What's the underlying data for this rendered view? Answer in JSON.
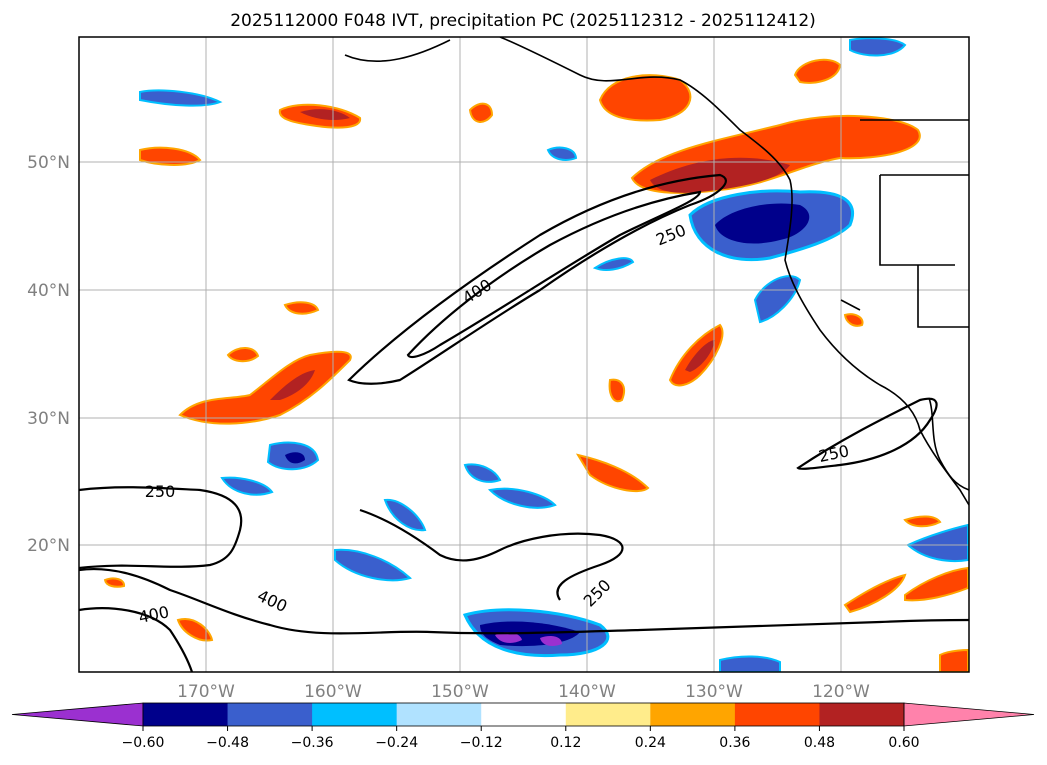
{
  "title": "2025112000 F048 IVT, precipitation PC (2025112312 - 2025112412)",
  "map": {
    "lon_labels": [
      "170°W",
      "160°W",
      "150°W",
      "140°W",
      "130°W",
      "120°W"
    ],
    "lat_labels": [
      "50°N",
      "40°N",
      "30°N",
      "20°N"
    ],
    "grid": true
  },
  "ivt_contours": {
    "labels": [
      "400",
      "250",
      "250",
      "250",
      "400",
      "400",
      "250"
    ]
  },
  "colorbar": {
    "ticks": [
      "−0.60",
      "−0.48",
      "−0.36",
      "−0.24",
      "−0.12",
      "0.12",
      "0.24",
      "0.36",
      "0.48",
      "0.60"
    ],
    "colors": [
      "#9b30d0",
      "#00008b",
      "#3a5fcd",
      "#00bfff",
      "#b0e2ff",
      "#ffffff",
      "#ffec8b",
      "#ffa500",
      "#ff4500",
      "#b22222",
      "#ff82ab"
    ],
    "extend": "both"
  }
}
